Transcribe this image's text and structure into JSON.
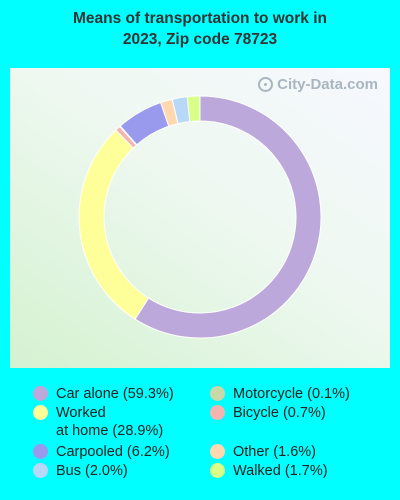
{
  "title_line1": "Means of transportation to work in",
  "title_line2": "2023, Zip code 78723",
  "watermark": "City-Data.com",
  "chart_data": {
    "type": "pie",
    "variant": "donut",
    "slices": [
      {
        "name": "Car alone",
        "value": 59.3,
        "color": "#BCA8DA",
        "legend": "Car alone (59.3%)"
      },
      {
        "name": "Worked at home",
        "value": 28.9,
        "color": "#FFFF99",
        "legend": "Worked\nat home (28.9%)"
      },
      {
        "name": "Bicycle",
        "value": 0.7,
        "color": "#F4B4B0",
        "legend": "Bicycle (0.7%)"
      },
      {
        "name": "Motorcycle",
        "value": 0.1,
        "color": "#C8D8A8",
        "legend": "Motorcycle (0.1%)"
      },
      {
        "name": "Carpooled",
        "value": 6.2,
        "color": "#9999EE",
        "legend": "Carpooled (6.2%)"
      },
      {
        "name": "Other",
        "value": 1.6,
        "color": "#FFD8B0",
        "legend": "Other (1.6%)"
      },
      {
        "name": "Bus",
        "value": 2.0,
        "color": "#B8D8F8",
        "legend": "Bus (2.0%)"
      },
      {
        "name": "Walked",
        "value": 1.7,
        "color": "#D8FF88",
        "legend": "Walked (1.7%)"
      }
    ],
    "legend_columns": [
      [
        "Car alone",
        "Worked at home",
        "Carpooled",
        "Bus"
      ],
      [
        "Motorcycle",
        "Bicycle",
        "Other",
        "Walked"
      ]
    ]
  }
}
